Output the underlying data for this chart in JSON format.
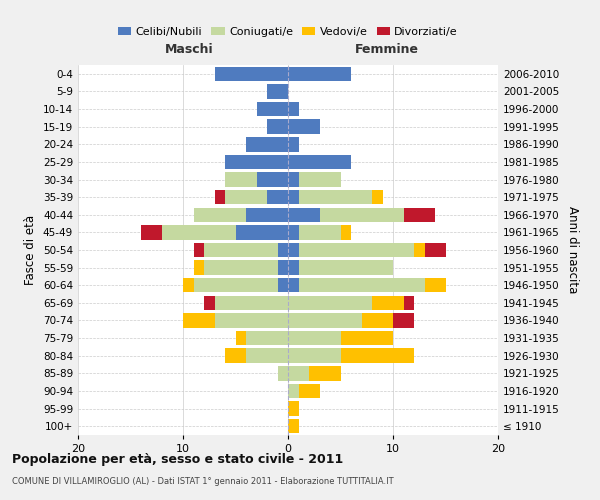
{
  "age_groups": [
    "100+",
    "95-99",
    "90-94",
    "85-89",
    "80-84",
    "75-79",
    "70-74",
    "65-69",
    "60-64",
    "55-59",
    "50-54",
    "45-49",
    "40-44",
    "35-39",
    "30-34",
    "25-29",
    "20-24",
    "15-19",
    "10-14",
    "5-9",
    "0-4"
  ],
  "birth_years": [
    "≤ 1910",
    "1911-1915",
    "1916-1920",
    "1921-1925",
    "1926-1930",
    "1931-1935",
    "1936-1940",
    "1941-1945",
    "1946-1950",
    "1951-1955",
    "1956-1960",
    "1961-1965",
    "1966-1970",
    "1971-1975",
    "1976-1980",
    "1981-1985",
    "1986-1990",
    "1991-1995",
    "1996-2000",
    "2001-2005",
    "2006-2010"
  ],
  "maschi_celibi": [
    0,
    0,
    0,
    0,
    0,
    0,
    0,
    0,
    1,
    1,
    1,
    5,
    4,
    2,
    3,
    6,
    4,
    2,
    3,
    2,
    7
  ],
  "maschi_coniugati": [
    0,
    0,
    0,
    1,
    4,
    4,
    7,
    7,
    8,
    7,
    7,
    7,
    5,
    4,
    3,
    0,
    0,
    0,
    0,
    0,
    0
  ],
  "maschi_vedovi": [
    0,
    0,
    0,
    0,
    2,
    1,
    3,
    0,
    1,
    1,
    0,
    0,
    0,
    0,
    0,
    0,
    0,
    0,
    0,
    0,
    0
  ],
  "maschi_divorziati": [
    0,
    0,
    0,
    0,
    0,
    0,
    0,
    1,
    0,
    0,
    1,
    2,
    0,
    1,
    0,
    0,
    0,
    0,
    0,
    0,
    0
  ],
  "femmine_nubili": [
    0,
    0,
    0,
    0,
    0,
    0,
    0,
    0,
    1,
    1,
    1,
    1,
    3,
    1,
    1,
    6,
    1,
    3,
    1,
    0,
    6
  ],
  "femmine_coniugate": [
    0,
    0,
    1,
    2,
    5,
    5,
    7,
    8,
    12,
    9,
    11,
    4,
    8,
    7,
    4,
    0,
    0,
    0,
    0,
    0,
    0
  ],
  "femmine_vedove": [
    1,
    1,
    2,
    3,
    7,
    5,
    3,
    3,
    2,
    0,
    1,
    1,
    0,
    1,
    0,
    0,
    0,
    0,
    0,
    0,
    0
  ],
  "femmine_divorziate": [
    0,
    0,
    0,
    0,
    0,
    0,
    2,
    1,
    0,
    0,
    2,
    0,
    3,
    0,
    0,
    0,
    0,
    0,
    0,
    0,
    0
  ],
  "color_celibi": "#4f7bbf",
  "color_coniugati": "#c5d9a0",
  "color_vedovi": "#ffc000",
  "color_divorziati": "#c0182c",
  "xlim": 20,
  "title": "Popolazione per età, sesso e stato civile - 2011",
  "subtitle": "COMUNE DI VILLAMIROGLIO (AL) - Dati ISTAT 1° gennaio 2011 - Elaborazione TUTTITALIA.IT",
  "label_maschi": "Maschi",
  "label_femmine": "Femmine",
  "ylabel_left": "Fasce di età",
  "ylabel_right": "Anni di nascita",
  "legend_labels": [
    "Celibi/Nubili",
    "Coniugati/e",
    "Vedovi/e",
    "Divorziati/e"
  ],
  "bg_color": "#f0f0f0",
  "plot_bg": "#ffffff"
}
